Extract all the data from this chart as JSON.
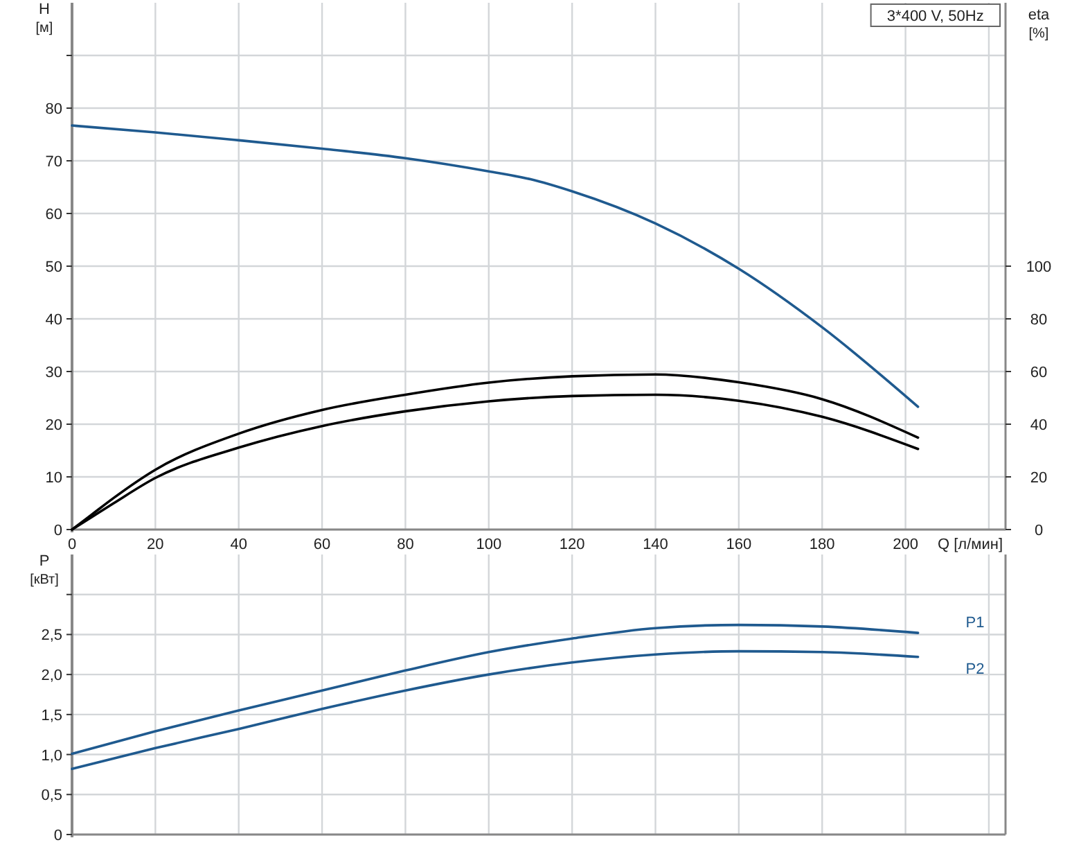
{
  "chart_data": [
    {
      "type": "line",
      "xlabel": "Q [л/мин]",
      "ylabel": "H [м]",
      "y2label": "eta [%]",
      "annotations": [
        "3*400 V, 50Hz"
      ],
      "grid": true,
      "xlim": [
        0,
        224
      ],
      "xticks": [
        0,
        20,
        40,
        60,
        80,
        100,
        120,
        140,
        160,
        180,
        200,
        {
          "value": 220,
          "label": null
        }
      ],
      "ylim": [
        0,
        100
      ],
      "yticks": [
        0,
        10,
        20,
        30,
        40,
        50,
        60,
        70,
        80,
        {
          "value": 90,
          "label": null
        }
      ],
      "y2lim": [
        0,
        200
      ],
      "y2ticks": [
        0,
        20,
        40,
        60,
        80,
        100
      ],
      "series": [
        {
          "color": "#1f5a8f",
          "x": [
            0,
            20,
            40,
            60,
            80,
            100,
            110,
            120,
            140,
            160,
            180,
            203
          ],
          "values": [
            76.7,
            75.4,
            73.9,
            72.3,
            70.5,
            68,
            66.5,
            64.2,
            58.1,
            49.5,
            38.4,
            23.3
          ]
        },
        {
          "color": "#000000",
          "axis": "y2",
          "x": [
            0,
            5,
            10,
            20,
            40,
            60,
            80,
            100,
            120,
            140,
            160,
            180,
            203
          ],
          "values": [
            0,
            6,
            12,
            22.7,
            36.4,
            45.4,
            51.2,
            55.8,
            58.2,
            58.9,
            55.9,
            49.5,
            34.9
          ]
        },
        {
          "color": "#000000",
          "axis": "y2",
          "x": [
            0,
            5,
            10,
            20,
            40,
            60,
            80,
            100,
            120,
            140,
            160,
            180,
            203
          ],
          "values": [
            0,
            5,
            10,
            19.6,
            31.1,
            39.3,
            44.9,
            48.7,
            50.7,
            51.2,
            48.9,
            42.8,
            30.6
          ]
        }
      ]
    },
    {
      "type": "line",
      "ylabel": "P [кВт]",
      "grid": true,
      "tick_labels": "y",
      "xlim": [
        0,
        224
      ],
      "xticks": [
        0,
        20,
        40,
        60,
        80,
        100,
        120,
        140,
        160,
        180,
        200,
        220
      ],
      "ylim": [
        0,
        3.5
      ],
      "yticks": [
        0,
        {
          "value": 0.5,
          "label": "0,5"
        },
        {
          "value": 1,
          "label": "1,0"
        },
        {
          "value": 1.5,
          "label": "1,5"
        },
        {
          "value": 2,
          "label": "2,0"
        },
        {
          "value": 2.5,
          "label": "2,5"
        },
        {
          "value": 3,
          "label": null
        }
      ],
      "series": [
        {
          "name": "P1",
          "color": "#1f5a8f",
          "x": [
            0,
            20,
            40,
            60,
            80,
            100,
            120,
            140,
            160,
            180,
            203
          ],
          "values": [
            1.01,
            1.29,
            1.55,
            1.8,
            2.05,
            2.28,
            2.45,
            2.58,
            2.62,
            2.6,
            2.52
          ]
        },
        {
          "name": "P2",
          "color": "#1f5a8f",
          "x": [
            0,
            20,
            40,
            60,
            80,
            100,
            120,
            140,
            160,
            180,
            203
          ],
          "values": [
            0.82,
            1.08,
            1.32,
            1.57,
            1.8,
            2.0,
            2.15,
            2.25,
            2.29,
            2.28,
            2.22
          ]
        }
      ]
    }
  ]
}
